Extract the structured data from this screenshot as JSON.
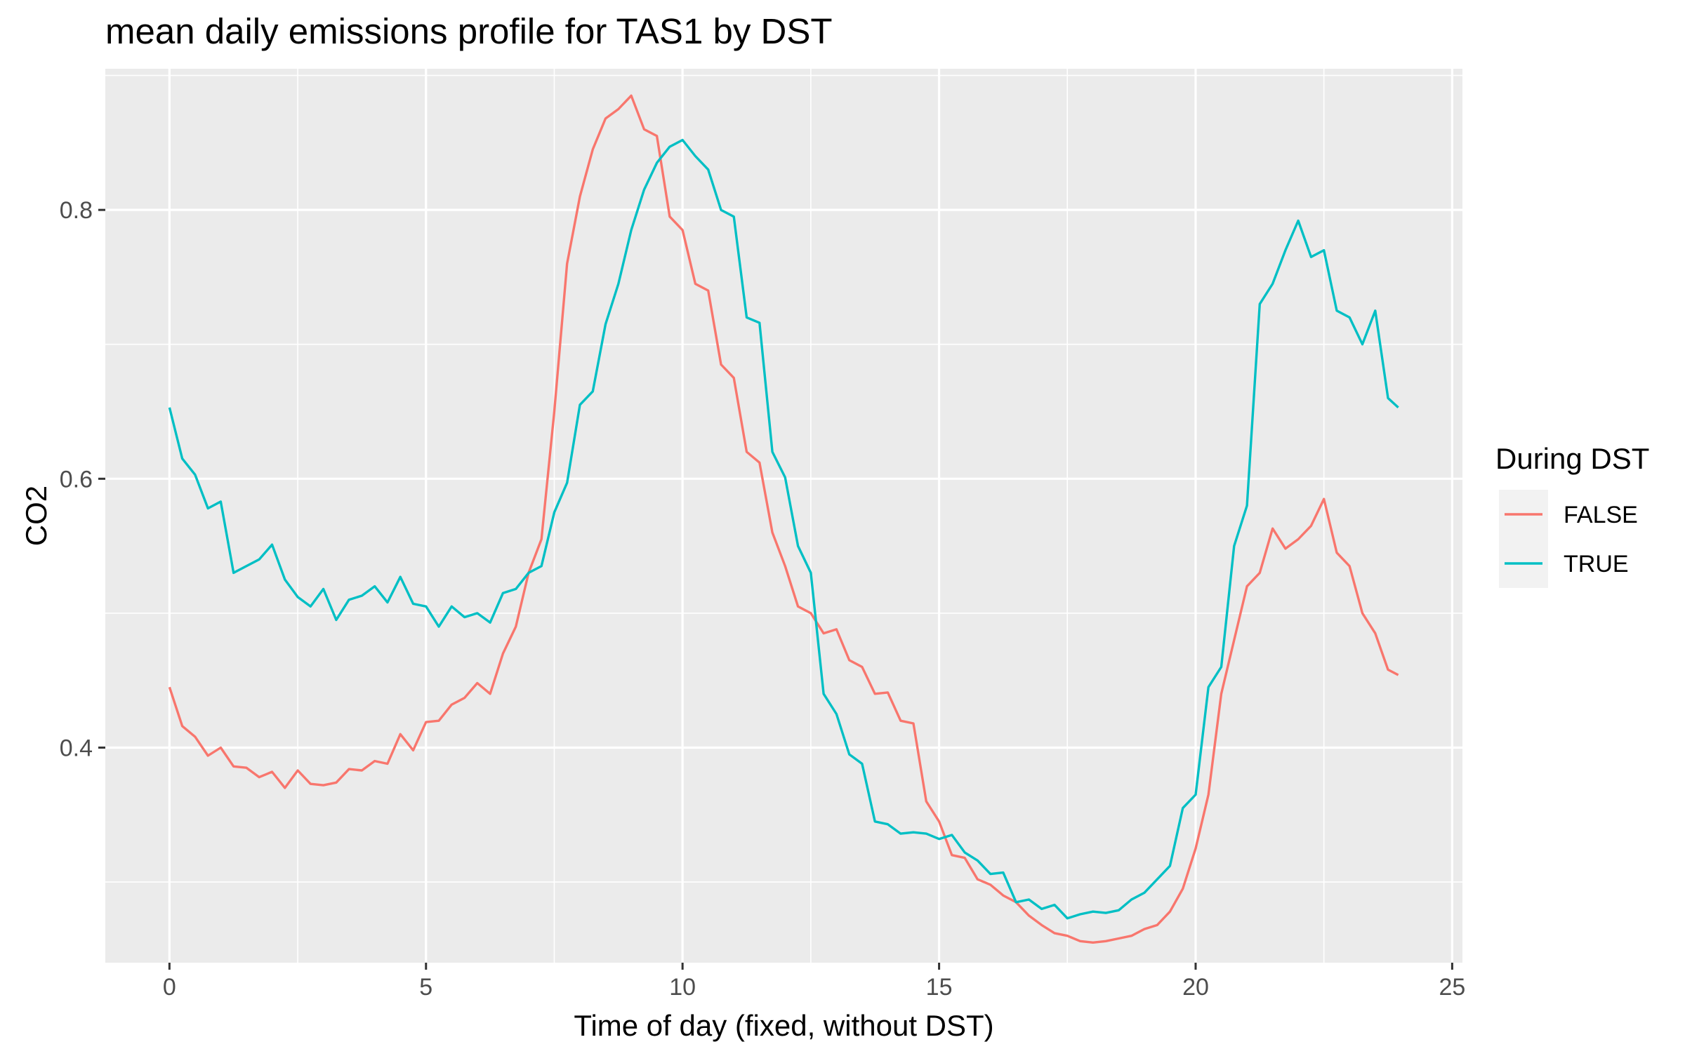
{
  "chart_data": {
    "type": "line",
    "title": "mean daily emissions profile for TAS1 by DST",
    "xlabel": "Time of day (fixed, without DST)",
    "ylabel": "CO2",
    "xlim": [
      -1.25,
      25.2
    ],
    "ylim": [
      0.24,
      0.905
    ],
    "x_ticks": [
      0,
      5,
      10,
      15,
      20,
      25
    ],
    "x_tick_labels": [
      "0",
      "5",
      "10",
      "15",
      "20",
      "25"
    ],
    "y_ticks": [
      0.4,
      0.6,
      0.8
    ],
    "y_tick_labels": [
      "0.4",
      "0.6",
      "0.8"
    ],
    "grid": true,
    "panel_background": "#ebebeb",
    "legend": {
      "title": "During DST",
      "position": "right"
    },
    "series": [
      {
        "name": "FALSE",
        "color": "#f8766d",
        "points": [
          [
            0,
            0.445
          ],
          [
            0.25,
            0.416
          ],
          [
            0.5,
            0.408
          ],
          [
            0.75,
            0.394
          ],
          [
            1.0,
            0.4
          ],
          [
            1.25,
            0.386
          ],
          [
            1.5,
            0.385
          ],
          [
            1.75,
            0.378
          ],
          [
            2.0,
            0.382
          ],
          [
            2.25,
            0.37
          ],
          [
            2.5,
            0.383
          ],
          [
            2.75,
            0.373
          ],
          [
            3.0,
            0.372
          ],
          [
            3.25,
            0.374
          ],
          [
            3.5,
            0.384
          ],
          [
            3.75,
            0.383
          ],
          [
            4.0,
            0.39
          ],
          [
            4.25,
            0.388
          ],
          [
            4.5,
            0.41
          ],
          [
            4.75,
            0.398
          ],
          [
            5.0,
            0.419
          ],
          [
            5.25,
            0.42
          ],
          [
            5.5,
            0.432
          ],
          [
            5.75,
            0.437
          ],
          [
            6.0,
            0.448
          ],
          [
            6.25,
            0.44
          ],
          [
            6.5,
            0.47
          ],
          [
            6.75,
            0.49
          ],
          [
            7.0,
            0.53
          ],
          [
            7.25,
            0.555
          ],
          [
            7.5,
            0.65
          ],
          [
            7.75,
            0.76
          ],
          [
            8.0,
            0.81
          ],
          [
            8.25,
            0.845
          ],
          [
            8.5,
            0.868
          ],
          [
            8.75,
            0.875
          ],
          [
            9.0,
            0.885
          ],
          [
            9.25,
            0.86
          ],
          [
            9.5,
            0.855
          ],
          [
            9.75,
            0.795
          ],
          [
            10.0,
            0.785
          ],
          [
            10.25,
            0.745
          ],
          [
            10.5,
            0.74
          ],
          [
            10.75,
            0.685
          ],
          [
            11.0,
            0.675
          ],
          [
            11.25,
            0.62
          ],
          [
            11.5,
            0.612
          ],
          [
            11.75,
            0.56
          ],
          [
            12.0,
            0.535
          ],
          [
            12.25,
            0.505
          ],
          [
            12.5,
            0.5
          ],
          [
            12.75,
            0.485
          ],
          [
            13.0,
            0.488
          ],
          [
            13.25,
            0.465
          ],
          [
            13.5,
            0.46
          ],
          [
            13.75,
            0.44
          ],
          [
            14.0,
            0.441
          ],
          [
            14.25,
            0.42
          ],
          [
            14.5,
            0.418
          ],
          [
            14.75,
            0.36
          ],
          [
            15.0,
            0.345
          ],
          [
            15.25,
            0.32
          ],
          [
            15.5,
            0.318
          ],
          [
            15.75,
            0.302
          ],
          [
            16.0,
            0.298
          ],
          [
            16.25,
            0.29
          ],
          [
            16.5,
            0.285
          ],
          [
            16.75,
            0.275
          ],
          [
            17.0,
            0.268
          ],
          [
            17.25,
            0.262
          ],
          [
            17.5,
            0.26
          ],
          [
            17.75,
            0.256
          ],
          [
            18.0,
            0.255
          ],
          [
            18.25,
            0.256
          ],
          [
            18.5,
            0.258
          ],
          [
            18.75,
            0.26
          ],
          [
            19.0,
            0.265
          ],
          [
            19.25,
            0.268
          ],
          [
            19.5,
            0.278
          ],
          [
            19.75,
            0.295
          ],
          [
            20.0,
            0.325
          ],
          [
            20.25,
            0.365
          ],
          [
            20.5,
            0.44
          ],
          [
            20.75,
            0.48
          ],
          [
            21.0,
            0.52
          ],
          [
            21.25,
            0.53
          ],
          [
            21.5,
            0.563
          ],
          [
            21.75,
            0.548
          ],
          [
            22.0,
            0.555
          ],
          [
            22.25,
            0.565
          ],
          [
            22.5,
            0.585
          ],
          [
            22.75,
            0.545
          ],
          [
            23.0,
            0.535
          ],
          [
            23.25,
            0.5
          ],
          [
            23.5,
            0.485
          ],
          [
            23.75,
            0.458
          ],
          [
            23.95,
            0.454
          ]
        ]
      },
      {
        "name": "TRUE",
        "color": "#00bfc4",
        "points": [
          [
            0,
            0.653
          ],
          [
            0.25,
            0.615
          ],
          [
            0.5,
            0.603
          ],
          [
            0.75,
            0.578
          ],
          [
            1.0,
            0.583
          ],
          [
            1.25,
            0.53
          ],
          [
            1.5,
            0.535
          ],
          [
            1.75,
            0.54
          ],
          [
            2.0,
            0.551
          ],
          [
            2.25,
            0.525
          ],
          [
            2.5,
            0.512
          ],
          [
            2.75,
            0.505
          ],
          [
            3.0,
            0.518
          ],
          [
            3.25,
            0.495
          ],
          [
            3.5,
            0.51
          ],
          [
            3.75,
            0.513
          ],
          [
            4.0,
            0.52
          ],
          [
            4.25,
            0.508
          ],
          [
            4.5,
            0.527
          ],
          [
            4.75,
            0.507
          ],
          [
            5.0,
            0.505
          ],
          [
            5.25,
            0.49
          ],
          [
            5.5,
            0.505
          ],
          [
            5.75,
            0.497
          ],
          [
            6.0,
            0.5
          ],
          [
            6.25,
            0.493
          ],
          [
            6.5,
            0.515
          ],
          [
            6.75,
            0.518
          ],
          [
            7.0,
            0.53
          ],
          [
            7.25,
            0.535
          ],
          [
            7.5,
            0.575
          ],
          [
            7.75,
            0.597
          ],
          [
            8.0,
            0.655
          ],
          [
            8.25,
            0.665
          ],
          [
            8.5,
            0.715
          ],
          [
            8.75,
            0.745
          ],
          [
            9.0,
            0.785
          ],
          [
            9.25,
            0.815
          ],
          [
            9.5,
            0.835
          ],
          [
            9.75,
            0.847
          ],
          [
            10.0,
            0.852
          ],
          [
            10.25,
            0.84
          ],
          [
            10.5,
            0.83
          ],
          [
            10.75,
            0.8
          ],
          [
            11.0,
            0.795
          ],
          [
            11.25,
            0.72
          ],
          [
            11.5,
            0.716
          ],
          [
            11.75,
            0.62
          ],
          [
            12.0,
            0.601
          ],
          [
            12.25,
            0.55
          ],
          [
            12.5,
            0.53
          ],
          [
            12.75,
            0.44
          ],
          [
            13.0,
            0.425
          ],
          [
            13.25,
            0.395
          ],
          [
            13.5,
            0.388
          ],
          [
            13.75,
            0.345
          ],
          [
            14.0,
            0.343
          ],
          [
            14.25,
            0.336
          ],
          [
            14.5,
            0.337
          ],
          [
            14.75,
            0.336
          ],
          [
            15.0,
            0.332
          ],
          [
            15.25,
            0.335
          ],
          [
            15.5,
            0.322
          ],
          [
            15.75,
            0.316
          ],
          [
            16.0,
            0.306
          ],
          [
            16.25,
            0.307
          ],
          [
            16.5,
            0.285
          ],
          [
            16.75,
            0.287
          ],
          [
            17.0,
            0.28
          ],
          [
            17.25,
            0.283
          ],
          [
            17.5,
            0.273
          ],
          [
            17.75,
            0.276
          ],
          [
            18.0,
            0.278
          ],
          [
            18.25,
            0.277
          ],
          [
            18.5,
            0.279
          ],
          [
            18.75,
            0.287
          ],
          [
            19.0,
            0.292
          ],
          [
            19.25,
            0.302
          ],
          [
            19.5,
            0.312
          ],
          [
            19.75,
            0.355
          ],
          [
            20.0,
            0.365
          ],
          [
            20.25,
            0.445
          ],
          [
            20.5,
            0.46
          ],
          [
            20.75,
            0.55
          ],
          [
            21.0,
            0.58
          ],
          [
            21.25,
            0.73
          ],
          [
            21.5,
            0.745
          ],
          [
            21.75,
            0.77
          ],
          [
            22.0,
            0.792
          ],
          [
            22.25,
            0.765
          ],
          [
            22.5,
            0.77
          ],
          [
            22.75,
            0.725
          ],
          [
            23.0,
            0.72
          ],
          [
            23.25,
            0.7
          ],
          [
            23.5,
            0.725
          ],
          [
            23.75,
            0.66
          ],
          [
            23.95,
            0.653
          ]
        ]
      }
    ]
  }
}
